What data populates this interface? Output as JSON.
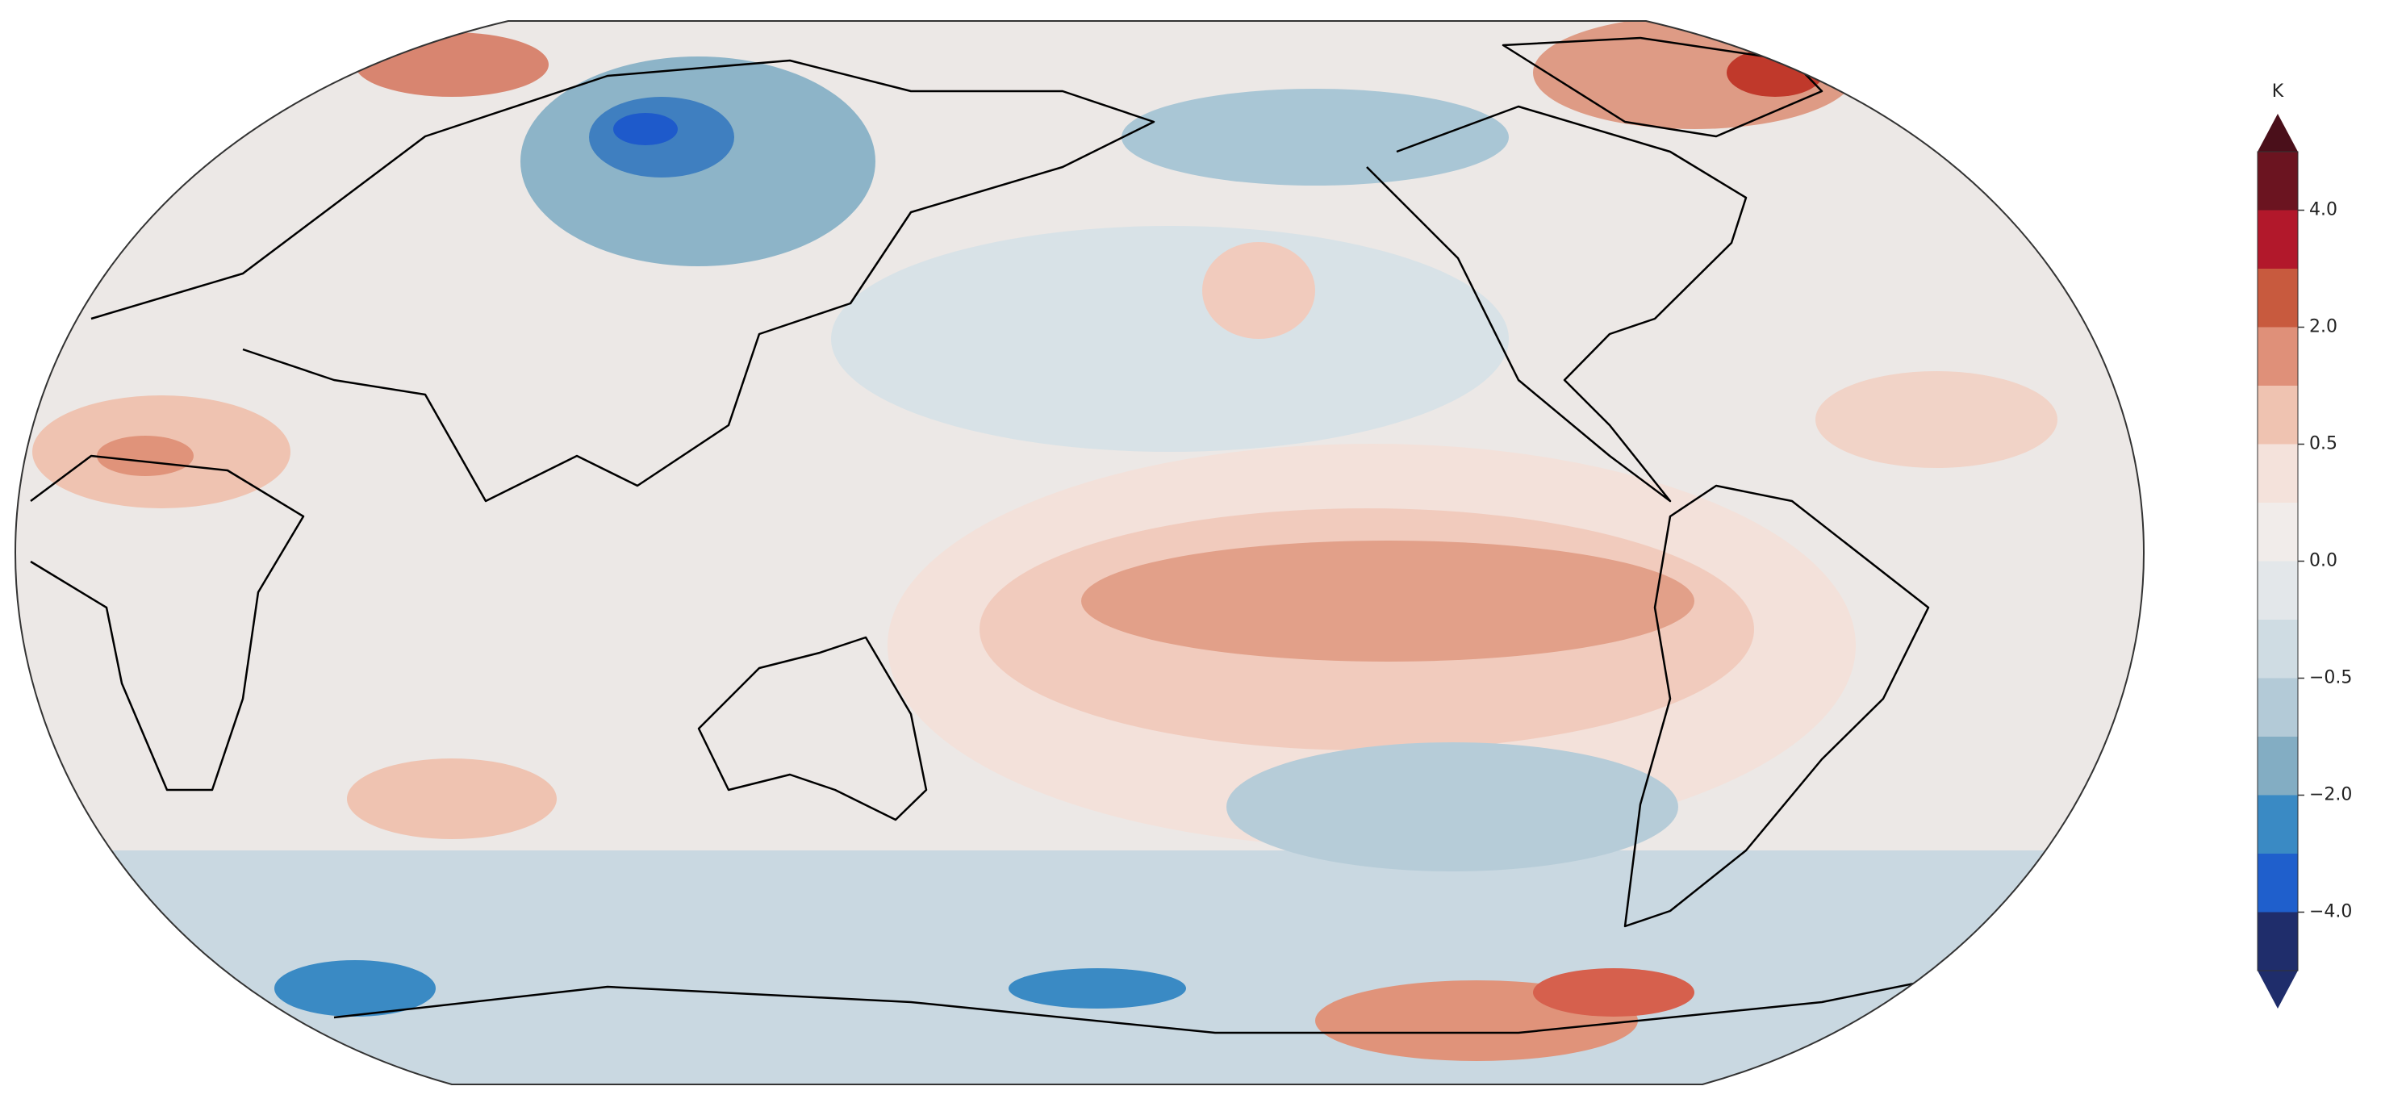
{
  "colorbar": {
    "label": "K",
    "ticks": [
      {
        "value": 4,
        "label": "4.0"
      },
      {
        "value": 2,
        "label": "2.0"
      },
      {
        "value": 0.5,
        "label": "0.5"
      },
      {
        "value": 0,
        "label": "0.0"
      },
      {
        "value": -0.5,
        "label": "−0.5"
      },
      {
        "value": -2,
        "label": "−2.0"
      },
      {
        "value": -4,
        "label": "−4.0"
      }
    ],
    "colors": [
      "#4a0f1a",
      "#6b1420",
      "#b2182b",
      "#c85a3e",
      "#df9079",
      "#efc3b1",
      "#f4e2db",
      "#f1ecea",
      "#e3e7ea",
      "#cfdce3",
      "#b3cad7",
      "#83adc3",
      "#3a8ac4",
      "#1f5fcc",
      "#1f2d6b",
      "#1f2d6b"
    ]
  }
}
